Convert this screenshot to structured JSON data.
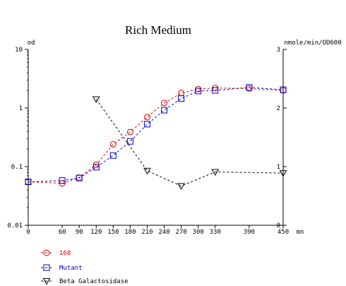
{
  "chart_data": {
    "type": "line",
    "title": "Rich Medium",
    "left_axis_label": "od",
    "right_axis_label": "nmole/min/OD600",
    "x_unit_label": "mn",
    "x_ticks": [
      0,
      60,
      90,
      120,
      150,
      180,
      210,
      240,
      270,
      300,
      330,
      390,
      450
    ],
    "xlim": [
      0,
      450
    ],
    "left_axis": {
      "scale": "log",
      "ylim": [
        0.01,
        10
      ],
      "ticks": [
        "0.01",
        "0.1",
        "1",
        "10"
      ]
    },
    "right_axis": {
      "scale": "linear",
      "ylim": [
        0,
        3
      ],
      "ticks": [
        "0",
        "1",
        "2",
        "3"
      ]
    },
    "grid": false,
    "legend_position": "bottom-left",
    "series": [
      {
        "name": "168",
        "axis": "left",
        "marker": "circle",
        "color": "#dd0000",
        "x": [
          0,
          60,
          90,
          120,
          150,
          180,
          210,
          240,
          270,
          300,
          330,
          390,
          450
        ],
        "y": [
          0.055,
          0.052,
          0.065,
          0.108,
          0.24,
          0.39,
          0.7,
          1.22,
          1.8,
          2.1,
          2.2,
          2.15,
          2.0
        ]
      },
      {
        "name": "Mutant",
        "axis": "left",
        "marker": "square",
        "color": "#0000cc",
        "x": [
          0,
          60,
          90,
          120,
          150,
          180,
          210,
          240,
          270,
          300,
          330,
          390,
          450
        ],
        "y": [
          0.055,
          0.058,
          0.064,
          0.098,
          0.155,
          0.27,
          0.53,
          0.92,
          1.45,
          1.95,
          2.0,
          2.25,
          2.05
        ]
      },
      {
        "name": "Beta Galactosidase",
        "axis": "right",
        "marker": "triangle-down",
        "color": "#000000",
        "x": [
          120,
          210,
          270,
          330,
          450
        ],
        "y": [
          2.15,
          0.93,
          0.67,
          0.91,
          0.89
        ]
      }
    ]
  }
}
